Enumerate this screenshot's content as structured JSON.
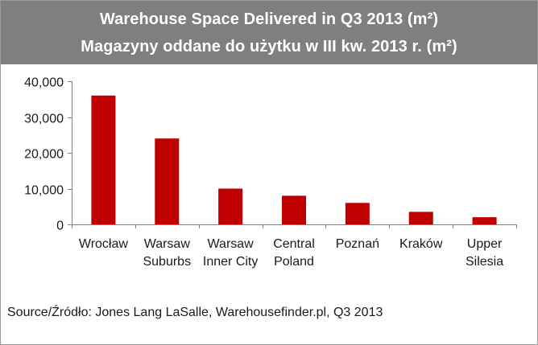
{
  "header": {
    "title_en": "Warehouse Space Delivered in Q3 2013 (m²)",
    "title_pl": "Magazyny oddane do użytku w III kw. 2013 r. (m²)"
  },
  "source": "Source/Źródło: Jones Lang LaSalle, Warehousefinder.pl, Q3 2013",
  "chart_data": {
    "type": "bar",
    "title": "Warehouse Space Delivered in Q3 2013 (m²)",
    "subtitle": "Magazyny oddane do użytku w III kw. 2013 r. (m²)",
    "categories": [
      [
        "Wrocław"
      ],
      [
        "Warsaw",
        "Suburbs"
      ],
      [
        "Warsaw",
        "Inner City"
      ],
      [
        "Central",
        "Poland"
      ],
      [
        "Poznań"
      ],
      [
        "Kraków"
      ],
      [
        "Upper",
        "Silesia"
      ]
    ],
    "values": [
      36000,
      24000,
      10000,
      8000,
      6000,
      3500,
      2000
    ],
    "ylim": [
      0,
      40000
    ],
    "yticks": [
      0,
      10000,
      20000,
      30000,
      40000
    ],
    "ytick_labels": [
      "0",
      "10,000",
      "20,000",
      "30,000",
      "40,000"
    ],
    "bar_color": "#c00000",
    "grid": false,
    "legend": "none"
  }
}
